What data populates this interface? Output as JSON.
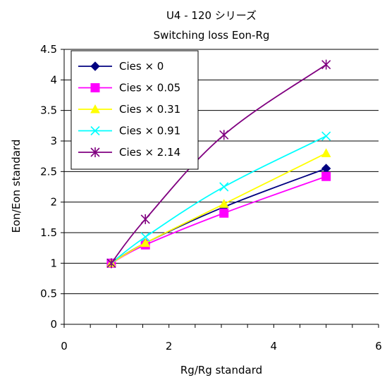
{
  "chart_data": {
    "type": "line",
    "title": "U4 - 120 シリーズ",
    "subtitle": "Switching loss  Eon-Rg",
    "xlabel": "Rg/Rg standard",
    "ylabel": "Eon/Eon standard",
    "xlim": [
      0,
      6
    ],
    "ylim": [
      0,
      4.5
    ],
    "x_ticks": [
      "0",
      "2",
      "4",
      "6"
    ],
    "y_ticks": [
      "0",
      "0.5",
      "1",
      "1.5",
      "2",
      "2.5",
      "3",
      "3.5",
      "4",
      "4.5"
    ],
    "grid": "horizontal",
    "legend_position": "top-left",
    "x": [
      0.9,
      1.55,
      3.05,
      5.0
    ],
    "series": [
      {
        "name": "Cies × 0",
        "values": [
          1.0,
          1.33,
          1.92,
          2.55
        ],
        "color": "#000080",
        "marker": "diamond"
      },
      {
        "name": "Cies × 0.05",
        "values": [
          1.0,
          1.3,
          1.82,
          2.42
        ],
        "color": "#ff00ff",
        "marker": "square"
      },
      {
        "name": "Cies × 0.31",
        "values": [
          1.0,
          1.33,
          1.97,
          2.8
        ],
        "color": "#ffff00",
        "marker": "triangle"
      },
      {
        "name": "Cies × 0.91",
        "values": [
          1.0,
          1.43,
          2.25,
          3.08
        ],
        "color": "#00ffff",
        "marker": "x"
      },
      {
        "name": "Cies × 2.14",
        "values": [
          1.0,
          1.72,
          3.1,
          4.25
        ],
        "color": "#800080",
        "marker": "star"
      }
    ]
  }
}
